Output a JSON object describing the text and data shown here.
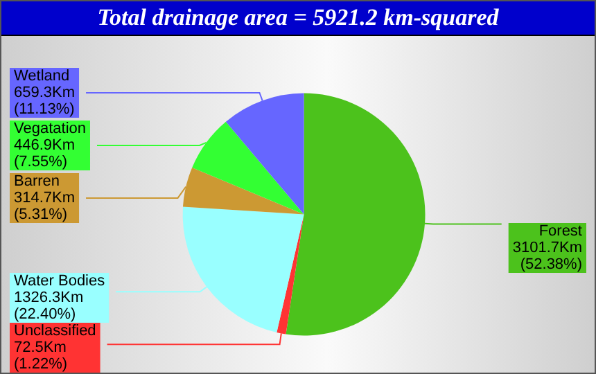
{
  "chart_data": {
    "type": "pie",
    "title": "Total drainage area = 5921.2 km-squared",
    "categories": [
      "Forest",
      "Unclassified",
      "Water Bodies",
      "Barren",
      "Vegatation",
      "Wetland"
    ],
    "values": [
      3101.7,
      72.5,
      1326.3,
      314.7,
      446.9,
      659.3
    ],
    "colors": [
      "#4cc21c",
      "#ff3333",
      "#99ffff",
      "#cc9933",
      "#33ff33",
      "#6666ff"
    ],
    "value_labels": [
      "3101.7Km\n(52.38%)",
      "72.5Km\n(1.22%)",
      "1326.3Km\n(22.40%)",
      "314.7Km\n(5.31%)",
      "446.9Km\n(7.55%)",
      "659.3Km\n(11.13%)"
    ],
    "legend": false
  }
}
